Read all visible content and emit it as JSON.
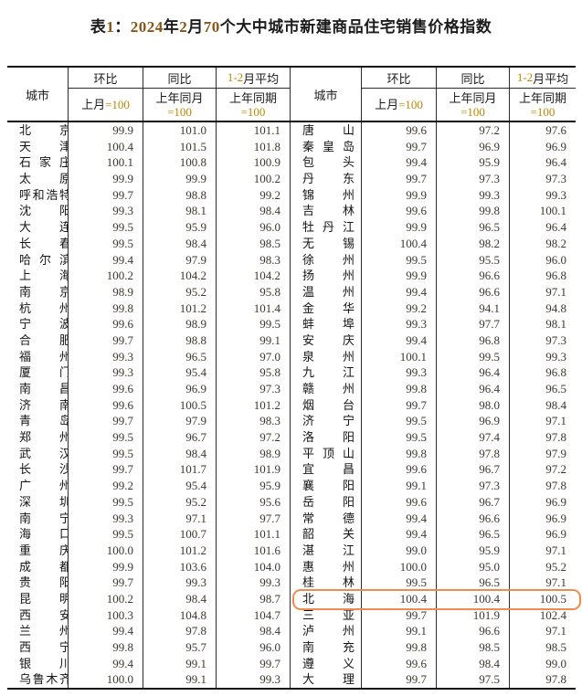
{
  "title": {
    "full": "表1：2024年2月70个大中城市新建商品住宅销售价格指数",
    "parts": [
      {
        "t": "表",
        "c": "k"
      },
      {
        "t": "1",
        "c": "g"
      },
      {
        "t": "：",
        "c": "k"
      },
      {
        "t": "2024",
        "c": "g"
      },
      {
        "t": "年",
        "c": "k"
      },
      {
        "t": "2",
        "c": "g"
      },
      {
        "t": "月",
        "c": "k"
      },
      {
        "t": "70",
        "c": "g"
      },
      {
        "t": "个大中城市新建商品住宅销售价格指数",
        "c": "k"
      }
    ]
  },
  "colors": {
    "header_gold": "#bd8800",
    "title_digit_brown": "#8a5514",
    "highlight_orange": "#ee8c50",
    "body_number": "#3d382e",
    "text_black": "#1c1c1c"
  },
  "header": {
    "city_label": "城市",
    "cols": [
      {
        "title": [
          {
            "t": "环比",
            "c": "k"
          }
        ],
        "sub": [
          [
            {
              "t": "上月",
              "c": "k"
            },
            {
              "t": "=100",
              "c": "g"
            }
          ]
        ]
      },
      {
        "title": [
          {
            "t": "同比",
            "c": "k"
          }
        ],
        "sub": [
          [
            {
              "t": "上年同月",
              "c": "k"
            }
          ],
          [
            {
              "t": "=100",
              "c": "g"
            }
          ]
        ]
      },
      {
        "title": [
          {
            "t": "1-2",
            "c": "g"
          },
          {
            "t": "月平均",
            "c": "k"
          }
        ],
        "sub": [
          [
            {
              "t": "上年同期",
              "c": "k"
            }
          ],
          [
            {
              "t": "=100",
              "c": "g"
            }
          ]
        ]
      }
    ]
  },
  "highlight_box": {
    "target_city": "北海"
  },
  "left_rows": [
    {
      "city": "北京",
      "mom": "99.9",
      "yoy": "101.0",
      "avg": "101.1"
    },
    {
      "city": "天津",
      "mom": "100.4",
      "yoy": "101.5",
      "avg": "101.8"
    },
    {
      "city": "石家庄",
      "mom": "100.1",
      "yoy": "100.8",
      "avg": "100.9"
    },
    {
      "city": "太原",
      "mom": "99.9",
      "yoy": "99.9",
      "avg": "100.2"
    },
    {
      "city": "呼和浩特",
      "mom": "99.7",
      "yoy": "98.8",
      "avg": "99.2"
    },
    {
      "city": "沈阳",
      "mom": "99.3",
      "yoy": "98.1",
      "avg": "98.4"
    },
    {
      "city": "大连",
      "mom": "99.5",
      "yoy": "95.9",
      "avg": "96.0"
    },
    {
      "city": "长春",
      "mom": "99.5",
      "yoy": "98.4",
      "avg": "98.5"
    },
    {
      "city": "哈尔滨",
      "mom": "99.4",
      "yoy": "97.9",
      "avg": "98.3"
    },
    {
      "city": "上海",
      "mom": "100.2",
      "yoy": "104.2",
      "avg": "104.2"
    },
    {
      "city": "南京",
      "mom": "98.9",
      "yoy": "95.2",
      "avg": "95.8"
    },
    {
      "city": "杭州",
      "mom": "99.8",
      "yoy": "101.2",
      "avg": "101.4"
    },
    {
      "city": "宁波",
      "mom": "99.6",
      "yoy": "98.9",
      "avg": "99.5"
    },
    {
      "city": "合肥",
      "mom": "99.7",
      "yoy": "98.8",
      "avg": "99.1"
    },
    {
      "city": "福州",
      "mom": "99.3",
      "yoy": "96.5",
      "avg": "97.0"
    },
    {
      "city": "厦门",
      "mom": "99.3",
      "yoy": "95.4",
      "avg": "95.8"
    },
    {
      "city": "南昌",
      "mom": "99.6",
      "yoy": "96.9",
      "avg": "97.3"
    },
    {
      "city": "济南",
      "mom": "99.6",
      "yoy": "100.5",
      "avg": "101.2"
    },
    {
      "city": "青岛",
      "mom": "99.7",
      "yoy": "97.9",
      "avg": "98.3"
    },
    {
      "city": "郑州",
      "mom": "99.5",
      "yoy": "96.7",
      "avg": "97.2"
    },
    {
      "city": "武汉",
      "mom": "99.5",
      "yoy": "98.4",
      "avg": "98.9"
    },
    {
      "city": "长沙",
      "mom": "99.7",
      "yoy": "101.7",
      "avg": "101.9"
    },
    {
      "city": "广州",
      "mom": "99.2",
      "yoy": "95.4",
      "avg": "95.9"
    },
    {
      "city": "深圳",
      "mom": "99.5",
      "yoy": "95.2",
      "avg": "95.6"
    },
    {
      "city": "南宁",
      "mom": "99.3",
      "yoy": "97.1",
      "avg": "97.7"
    },
    {
      "city": "海口",
      "mom": "99.5",
      "yoy": "100.7",
      "avg": "101.1"
    },
    {
      "city": "重庆",
      "mom": "100.0",
      "yoy": "101.2",
      "avg": "101.6"
    },
    {
      "city": "成都",
      "mom": "99.9",
      "yoy": "103.6",
      "avg": "104.0"
    },
    {
      "city": "贵阳",
      "mom": "99.7",
      "yoy": "99.3",
      "avg": "99.3"
    },
    {
      "city": "昆明",
      "mom": "100.2",
      "yoy": "98.4",
      "avg": "98.7"
    },
    {
      "city": "西安",
      "mom": "100.3",
      "yoy": "104.8",
      "avg": "104.7"
    },
    {
      "city": "兰州",
      "mom": "99.4",
      "yoy": "97.8",
      "avg": "98.4"
    },
    {
      "city": "西宁",
      "mom": "99.8",
      "yoy": "95.7",
      "avg": "96.0"
    },
    {
      "city": "银川",
      "mom": "99.4",
      "yoy": "99.1",
      "avg": "99.7"
    },
    {
      "city": "乌鲁木齐",
      "mom": "100.0",
      "yoy": "99.1",
      "avg": "99.3"
    }
  ],
  "right_rows": [
    {
      "city": "唐山",
      "mom": "99.6",
      "yoy": "97.2",
      "avg": "97.6"
    },
    {
      "city": "秦皇岛",
      "mom": "99.7",
      "yoy": "96.9",
      "avg": "96.9"
    },
    {
      "city": "包头",
      "mom": "99.4",
      "yoy": "95.9",
      "avg": "96.4"
    },
    {
      "city": "丹东",
      "mom": "99.7",
      "yoy": "97.3",
      "avg": "97.3"
    },
    {
      "city": "锦州",
      "mom": "99.9",
      "yoy": "99.3",
      "avg": "99.3"
    },
    {
      "city": "吉林",
      "mom": "99.6",
      "yoy": "99.8",
      "avg": "100.1"
    },
    {
      "city": "牡丹江",
      "mom": "99.9",
      "yoy": "96.5",
      "avg": "96.4"
    },
    {
      "city": "无锡",
      "mom": "100.4",
      "yoy": "98.2",
      "avg": "98.2"
    },
    {
      "city": "徐州",
      "mom": "99.5",
      "yoy": "95.5",
      "avg": "96.0"
    },
    {
      "city": "扬州",
      "mom": "99.9",
      "yoy": "96.6",
      "avg": "96.8"
    },
    {
      "city": "温州",
      "mom": "99.4",
      "yoy": "96.6",
      "avg": "97.1"
    },
    {
      "city": "金华",
      "mom": "99.2",
      "yoy": "94.1",
      "avg": "94.8"
    },
    {
      "city": "蚌埠",
      "mom": "99.3",
      "yoy": "97.7",
      "avg": "98.1"
    },
    {
      "city": "安庆",
      "mom": "99.4",
      "yoy": "96.8",
      "avg": "97.3"
    },
    {
      "city": "泉州",
      "mom": "100.1",
      "yoy": "99.5",
      "avg": "99.3"
    },
    {
      "city": "九江",
      "mom": "99.3",
      "yoy": "96.4",
      "avg": "96.8"
    },
    {
      "city": "赣州",
      "mom": "99.8",
      "yoy": "96.4",
      "avg": "96.5"
    },
    {
      "city": "烟台",
      "mom": "99.7",
      "yoy": "98.0",
      "avg": "98.4"
    },
    {
      "city": "济宁",
      "mom": "99.5",
      "yoy": "96.9",
      "avg": "97.1"
    },
    {
      "city": "洛阳",
      "mom": "99.5",
      "yoy": "97.4",
      "avg": "97.8"
    },
    {
      "city": "平顶山",
      "mom": "99.8",
      "yoy": "97.8",
      "avg": "97.9"
    },
    {
      "city": "宜昌",
      "mom": "99.6",
      "yoy": "96.7",
      "avg": "97.2"
    },
    {
      "city": "襄阳",
      "mom": "99.1",
      "yoy": "97.3",
      "avg": "97.8"
    },
    {
      "city": "岳阳",
      "mom": "99.6",
      "yoy": "96.7",
      "avg": "96.9"
    },
    {
      "city": "常德",
      "mom": "99.4",
      "yoy": "96.6",
      "avg": "96.9"
    },
    {
      "city": "韶关",
      "mom": "99.4",
      "yoy": "96.5",
      "avg": "96.9"
    },
    {
      "city": "湛江",
      "mom": "99.0",
      "yoy": "95.9",
      "avg": "97.1"
    },
    {
      "city": "惠州",
      "mom": "100.0",
      "yoy": "95.0",
      "avg": "95.2"
    },
    {
      "city": "桂林",
      "mom": "99.5",
      "yoy": "96.5",
      "avg": "97.1"
    },
    {
      "city": "北海",
      "mom": "100.4",
      "yoy": "100.4",
      "avg": "100.5"
    },
    {
      "city": "三亚",
      "mom": "99.7",
      "yoy": "101.9",
      "avg": "102.4"
    },
    {
      "city": "泸州",
      "mom": "99.1",
      "yoy": "96.6",
      "avg": "97.1"
    },
    {
      "city": "南充",
      "mom": "99.8",
      "yoy": "98.5",
      "avg": "98.5"
    },
    {
      "city": "遵义",
      "mom": "99.6",
      "yoy": "98.4",
      "avg": "99.0"
    },
    {
      "city": "大理",
      "mom": "99.7",
      "yoy": "97.5",
      "avg": "97.8"
    }
  ]
}
